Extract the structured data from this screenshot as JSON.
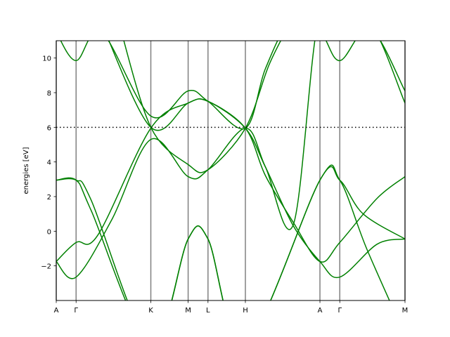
{
  "chart_data": {
    "type": "line",
    "title": "",
    "xlabel": "",
    "ylabel": "energies [eV]",
    "ylim": [
      -4,
      11
    ],
    "yticks": [
      -2,
      0,
      2,
      4,
      6,
      8,
      10
    ],
    "ytick_labels": [
      "−2",
      "0",
      "2",
      "4",
      "6",
      "8",
      "10"
    ],
    "kpath": [
      {
        "label": "A",
        "x": 0.0
      },
      {
        "label": "Γ",
        "x": 0.0569
      },
      {
        "label": "K",
        "x": 0.2712
      },
      {
        "label": "M",
        "x": 0.3782
      },
      {
        "label": "L",
        "x": 0.4351
      },
      {
        "label": "H",
        "x": 0.5423
      },
      {
        "label": "A",
        "x": 0.7561
      },
      {
        "label": "Γ",
        "x": 0.813
      },
      {
        "label": "M",
        "x": 1.0
      }
    ],
    "fermi_level": 6.0,
    "grid": false,
    "colors": {
      "bands": "#008000",
      "kpoint_lines": "#808080",
      "fermi": "#000000"
    },
    "series": [
      {
        "values": [
          [
            0.0,
            -1.75
          ],
          [
            0.0569,
            -0.65
          ],
          [
            0.12,
            -0.2
          ],
          [
            0.2712,
            5.95
          ],
          [
            0.3782,
            7.4
          ],
          [
            0.4351,
            7.5
          ],
          [
            0.5423,
            5.95
          ],
          [
            0.6,
            3.2
          ],
          [
            0.68,
            0.5
          ],
          [
            0.7561,
            -1.75
          ],
          [
            0.813,
            -0.65
          ],
          [
            0.92,
            1.9
          ],
          [
            1.0,
            3.15
          ]
        ]
      },
      {
        "values": [
          [
            0.0,
            -1.75
          ],
          [
            0.0569,
            -2.65
          ],
          [
            0.16,
            0.7
          ],
          [
            0.2712,
            5.3
          ],
          [
            0.3782,
            3.15
          ],
          [
            0.4351,
            3.55
          ],
          [
            0.5423,
            5.95
          ],
          [
            0.6,
            3.7
          ],
          [
            0.68,
            0.3
          ],
          [
            0.7561,
            -1.75
          ],
          [
            0.813,
            -2.65
          ],
          [
            0.92,
            -0.75
          ],
          [
            1.0,
            -0.45
          ]
        ]
      },
      {
        "values": [
          [
            0.0,
            2.95
          ],
          [
            0.0569,
            2.95
          ],
          [
            0.1,
            1.8
          ],
          [
            0.2712,
            -6.5
          ],
          [
            0.3782,
            -0.45
          ],
          [
            0.4351,
            -0.45
          ],
          [
            0.5423,
            -6.5
          ],
          [
            0.7561,
            2.95
          ],
          [
            0.813,
            2.95
          ],
          [
            0.88,
            1.0
          ],
          [
            1.0,
            -0.45
          ]
        ]
      },
      {
        "values": [
          [
            0.0,
            2.95
          ],
          [
            0.0569,
            2.95
          ],
          [
            0.1,
            1.2
          ],
          [
            0.2712,
            -6.5
          ],
          [
            0.3782,
            -0.45
          ],
          [
            0.4351,
            -0.45
          ],
          [
            0.5423,
            -6.5
          ],
          [
            0.7561,
            2.95
          ],
          [
            0.813,
            2.95
          ],
          [
            0.89,
            -1.0
          ],
          [
            1.0,
            -6.0
          ]
        ]
      },
      {
        "values": [
          [
            0.0,
            11.5
          ],
          [
            0.0569,
            9.85
          ],
          [
            0.13,
            11.5
          ],
          [
            0.2712,
            6.65
          ],
          [
            0.3782,
            8.1
          ],
          [
            0.4351,
            7.5
          ],
          [
            0.5423,
            5.95
          ],
          [
            0.6,
            9.4
          ],
          [
            0.67,
            12.0
          ],
          [
            0.7561,
            11.5
          ],
          [
            0.813,
            9.85
          ],
          [
            0.9,
            11.7
          ],
          [
            1.0,
            8.1
          ]
        ]
      },
      {
        "values": [
          [
            0.13,
            12.0
          ],
          [
            0.2712,
            6.0
          ],
          [
            0.3782,
            7.4
          ],
          [
            0.4351,
            7.5
          ],
          [
            0.5423,
            5.95
          ],
          [
            0.6,
            3.7
          ],
          [
            0.68,
            0.4
          ],
          [
            0.75,
            12.0
          ],
          [
            0.813,
            11.2
          ],
          [
            0.9,
            12.0
          ],
          [
            1.0,
            7.4
          ]
        ]
      },
      {
        "values": [
          [
            0.18,
            12.0
          ],
          [
            0.2712,
            6.0
          ],
          [
            0.3782,
            3.85
          ],
          [
            0.4351,
            3.55
          ],
          [
            0.5423,
            5.95
          ],
          [
            0.61,
            9.6
          ],
          [
            0.67,
            12.0
          ]
        ]
      }
    ]
  }
}
